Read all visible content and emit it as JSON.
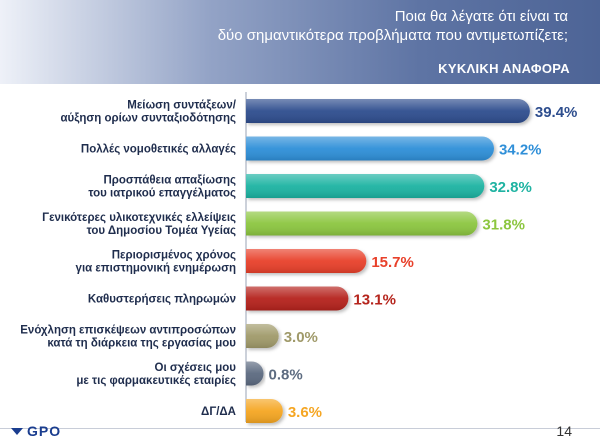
{
  "header": {
    "question_line1": "Ποια θα λέγατε ότι είναι τα",
    "question_line2": "δύο σημαντικότερα προβλήματα που αντιμετωπίζετε;",
    "subtitle": "ΚΥΚΛΙΚΗ ΑΝΑΦΟΡΑ"
  },
  "footer": {
    "logo_text": "GPO",
    "page_number": "14"
  },
  "chart_data": {
    "type": "bar",
    "orientation": "horizontal",
    "categories": [
      [
        "Μείωση συντάξεων/",
        "αύξηση ορίων συνταξιοδότησης"
      ],
      [
        "Πολλές νομοθετικές αλλαγές"
      ],
      [
        "Προσπάθεια απαξίωσης",
        "του ιατρικού επαγγέλματος"
      ],
      [
        "Γενικότερες υλικοτεχνικές ελλείψεις",
        "του Δημοσίου Τομέα Υγείας"
      ],
      [
        "Περιορισμένος χρόνος",
        "για επιστημονική ενημέρωση"
      ],
      [
        "Καθυστερήσεις πληρωμών"
      ],
      [
        "Ενόχληση επισκέψεων αντιπροσώπων",
        "κατά τη διάρκεια της εργασίας μου"
      ],
      [
        "Οι σχέσεις μου",
        "με τις φαρμακευτικές εταιρίες"
      ],
      [
        "ΔΓ/ΔΑ"
      ]
    ],
    "values": [
      39.4,
      34.2,
      32.8,
      31.8,
      15.7,
      13.1,
      3.0,
      0.8,
      3.6
    ],
    "value_labels": [
      "39.4%",
      "34.2%",
      "32.8%",
      "31.8%",
      "15.7%",
      "13.1%",
      "3.0%",
      "0.8%",
      "3.6%"
    ],
    "colors": [
      "#2e4e8e",
      "#2f8fd8",
      "#1fb3a2",
      "#8cc63f",
      "#e8402a",
      "#b5241c",
      "#a09a6a",
      "#5c6b80",
      "#f5a623"
    ],
    "label_colors": [
      "#2e4e8e",
      "#2f8fd8",
      "#1fb3a2",
      "#8cc63f",
      "#e8402a",
      "#b5241c",
      "#a09a6a",
      "#5c6b80",
      "#f5a623"
    ],
    "xlim": [
      0,
      40
    ],
    "grid": false,
    "legend": "none"
  }
}
